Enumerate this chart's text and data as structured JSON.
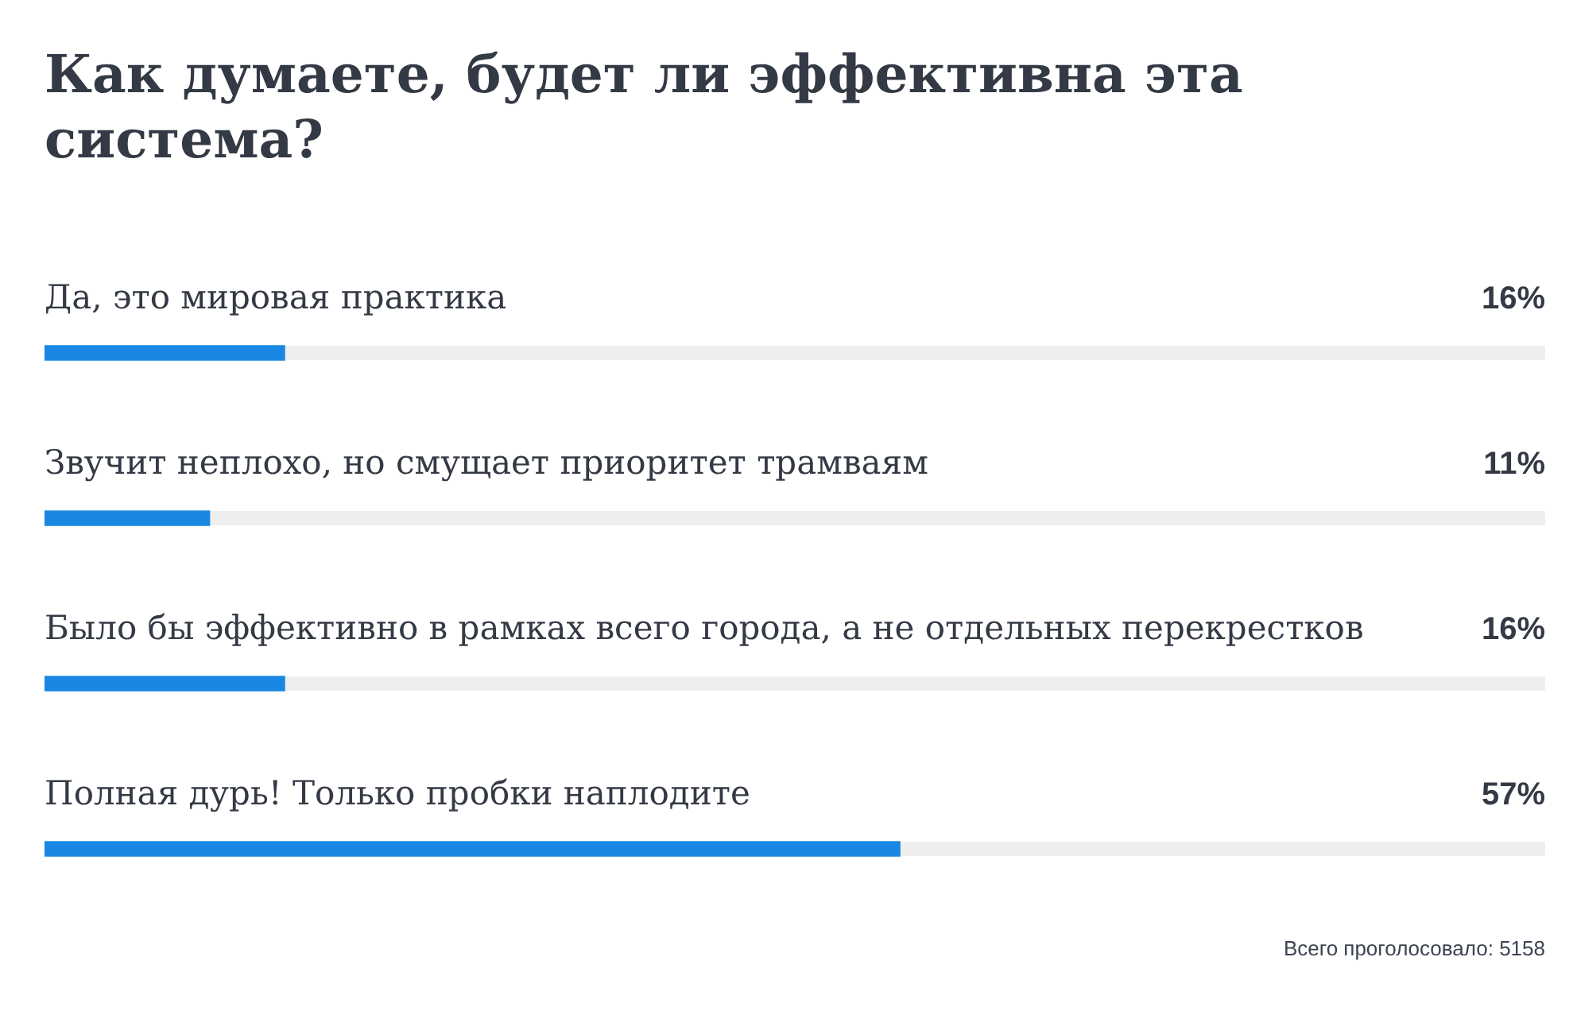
{
  "chart_data": {
    "type": "bar",
    "orientation": "horizontal",
    "title": "Как думаете, будет ли эффективна эта система?",
    "categories": [
      "Да, это мировая практика",
      "Звучит неплохо, но смущает приоритет трамваям",
      "Было бы эффективно в рамках всего города, а не отдельных перекрестков",
      "Полная дурь! Только пробки наплодите"
    ],
    "values": [
      16,
      11,
      16,
      57
    ],
    "color": "#1a88e2",
    "value_labels": [
      "16%",
      "11%",
      "16%",
      "57%"
    ],
    "xlim": [
      0,
      100
    ],
    "tick_labels": "y",
    "annotations": [
      "Всего проголосовало: 5158"
    ]
  }
}
